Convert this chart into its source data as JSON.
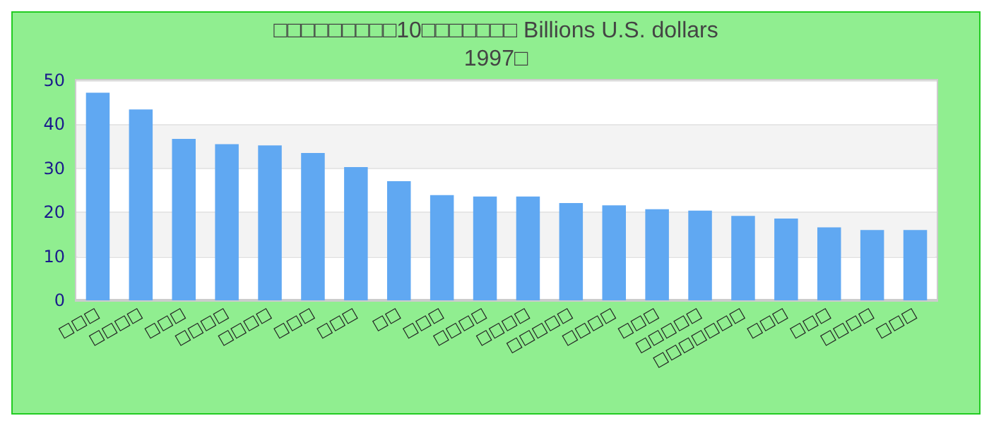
{
  "chart_data": {
    "type": "bar",
    "title": "□□□□□□□□□10□□□□□□□ Billions U.S. dollars",
    "subtitle": "1997□",
    "categories": [
      "□□□",
      "□□□□",
      "□□□",
      "□□□□",
      "□□□□",
      "□□□",
      "□□□",
      "□□",
      "□□□",
      "□□□□",
      "□□□□",
      "□□□□□",
      "□□□□",
      "□□□",
      "□□□□□",
      "□□□□□□□",
      "□□□",
      "□□□",
      "□□□□",
      "□□□"
    ],
    "values": [
      47.2,
      43.4,
      36.7,
      35.5,
      35.2,
      33.5,
      30.3,
      27.1,
      23.9,
      23.6,
      23.6,
      22.1,
      21.6,
      20.7,
      20.4,
      19.2,
      18.6,
      16.6,
      16.0,
      16.0
    ],
    "color": "#60a8f2",
    "ylim": [
      0,
      50
    ],
    "yticks": [
      0,
      10,
      20,
      30,
      40,
      50
    ],
    "grid": "y",
    "legend": false
  }
}
